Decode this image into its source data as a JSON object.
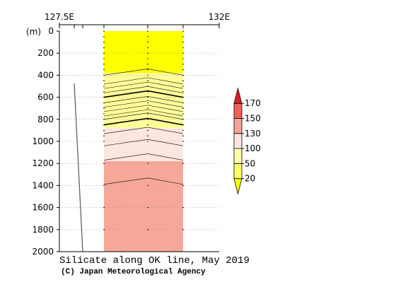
{
  "chart_data": {
    "type": "heatmap",
    "title": "Silicate along OK line, May 2019",
    "credit": "(C) Japan Meteorological Agency",
    "x_ticks": [
      "127.5E",
      "132E"
    ],
    "ylabel": "(m)",
    "y_ticks": [
      0,
      200,
      400,
      600,
      800,
      1000,
      1200,
      1400,
      1600,
      1800,
      2000
    ],
    "ylim": [
      0,
      2000
    ],
    "colorbar": {
      "labels": [
        "20",
        "50",
        "100",
        "130",
        "150",
        "170"
      ],
      "band_colors": [
        "#ffff00",
        "#ffff66",
        "#ffffaa",
        "#fbe5de",
        "#f4a595",
        "#f0605a",
        "#e02020"
      ]
    },
    "bands": [
      {
        "from": 0,
        "to": 380,
        "color": "#ffff00"
      },
      {
        "from": 380,
        "to": 880,
        "color": "#ffff99"
      },
      {
        "from": 880,
        "to": 1180,
        "color": "#fce6df"
      },
      {
        "from": 1180,
        "to": 2000,
        "color": "#f6a898"
      }
    ],
    "contours": [
      {
        "depth": 400,
        "bold": false
      },
      {
        "depth": 480,
        "bold": false
      },
      {
        "depth": 520,
        "bold": false
      },
      {
        "depth": 560,
        "bold": false
      },
      {
        "depth": 600,
        "bold": true
      },
      {
        "depth": 650,
        "bold": false
      },
      {
        "depth": 690,
        "bold": false
      },
      {
        "depth": 730,
        "bold": false
      },
      {
        "depth": 770,
        "bold": false
      },
      {
        "depth": 800,
        "bold": false
      },
      {
        "depth": 850,
        "bold": true
      },
      {
        "depth": 930,
        "bold": false
      },
      {
        "depth": 1040,
        "bold": false
      },
      {
        "depth": 1170,
        "bold": false
      },
      {
        "depth": 1390,
        "bold": false
      }
    ]
  }
}
